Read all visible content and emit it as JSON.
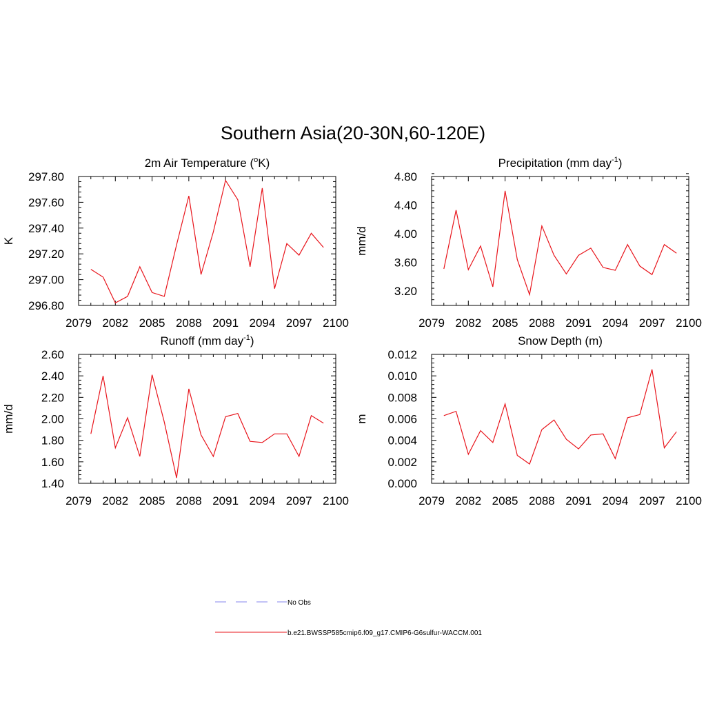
{
  "title": "Southern Asia(20-30N,60-120E)",
  "colors": {
    "series": "#e8141b",
    "no_obs": "#9e9ef0",
    "axis": "#000000"
  },
  "legend": {
    "no_obs_label": "No Obs",
    "model_label": "b.e21.BWSSP585cmip6.f09_g17.CMIP6-G6sulfur-WACCM.001"
  },
  "chart_data": [
    {
      "type": "line",
      "title_main": "2m Air Temperature (",
      "title_sup": "o",
      "title_tail": "K)",
      "ylabel": "K",
      "xlim": [
        2079,
        2100
      ],
      "xticks": [
        "2079",
        "2082",
        "2085",
        "2088",
        "2091",
        "2094",
        "2097",
        "2100"
      ],
      "ylim": [
        296.8,
        297.8
      ],
      "yticks": [
        "296.80",
        "297.00",
        "297.20",
        "297.40",
        "297.60",
        "297.80"
      ],
      "series": [
        {
          "x": [
            2080,
            2081,
            2082,
            2083,
            2084,
            2085,
            2086,
            2087,
            2088,
            2089,
            2090,
            2091,
            2092,
            2093,
            2094,
            2095,
            2096,
            2097,
            2098,
            2099
          ],
          "values": [
            297.08,
            297.02,
            296.82,
            296.87,
            297.1,
            296.9,
            296.87,
            297.27,
            297.65,
            297.04,
            297.37,
            297.77,
            297.62,
            297.1,
            297.71,
            296.93,
            297.28,
            297.19,
            297.36,
            297.25
          ]
        }
      ]
    },
    {
      "type": "line",
      "title_main": "Precipitation (mm day",
      "title_sup": "-1",
      "title_tail": ")",
      "ylabel": "mm/d",
      "xlim": [
        2079,
        2100
      ],
      "xticks": [
        "2079",
        "2082",
        "2085",
        "2088",
        "2091",
        "2094",
        "2097",
        "2100"
      ],
      "ylim": [
        3.0,
        4.8
      ],
      "yticks": [
        "3.20",
        "3.60",
        "4.00",
        "4.40",
        "4.80"
      ],
      "series": [
        {
          "x": [
            2080,
            2081,
            2082,
            2083,
            2084,
            2085,
            2086,
            2087,
            2088,
            2089,
            2090,
            2091,
            2092,
            2093,
            2094,
            2095,
            2096,
            2097,
            2098,
            2099
          ],
          "values": [
            3.51,
            4.33,
            3.5,
            3.83,
            3.26,
            4.6,
            3.64,
            3.15,
            4.11,
            3.7,
            3.44,
            3.7,
            3.8,
            3.53,
            3.49,
            3.85,
            3.55,
            3.43,
            3.85,
            3.73
          ]
        }
      ]
    },
    {
      "type": "line",
      "title_main": "Runoff (mm day",
      "title_sup": "-1",
      "title_tail": ")",
      "ylabel": "mm/d",
      "xlim": [
        2079,
        2100
      ],
      "xticks": [
        "2079",
        "2082",
        "2085",
        "2088",
        "2091",
        "2094",
        "2097",
        "2100"
      ],
      "ylim": [
        1.4,
        2.6
      ],
      "yticks": [
        "1.40",
        "1.60",
        "1.80",
        "2.00",
        "2.20",
        "2.40",
        "2.60"
      ],
      "series": [
        {
          "x": [
            2080,
            2081,
            2082,
            2083,
            2084,
            2085,
            2086,
            2087,
            2088,
            2089,
            2090,
            2091,
            2092,
            2093,
            2094,
            2095,
            2096,
            2097,
            2098,
            2099
          ],
          "values": [
            1.86,
            2.4,
            1.73,
            2.01,
            1.65,
            2.41,
            1.97,
            1.45,
            2.28,
            1.85,
            1.65,
            2.02,
            2.05,
            1.79,
            1.78,
            1.86,
            1.86,
            1.65,
            2.03,
            1.96
          ]
        }
      ]
    },
    {
      "type": "line",
      "title_main": "Snow Depth (m)",
      "title_sup": "",
      "title_tail": "",
      "ylabel": "m",
      "xlim": [
        2079,
        2100
      ],
      "xticks": [
        "2079",
        "2082",
        "2085",
        "2088",
        "2091",
        "2094",
        "2097",
        "2100"
      ],
      "ylim": [
        0.0,
        0.012
      ],
      "yticks": [
        "0.000",
        "0.002",
        "0.004",
        "0.006",
        "0.008",
        "0.010",
        "0.012"
      ],
      "series": [
        {
          "x": [
            2080,
            2081,
            2082,
            2083,
            2084,
            2085,
            2086,
            2087,
            2088,
            2089,
            2090,
            2091,
            2092,
            2093,
            2094,
            2095,
            2096,
            2097,
            2098,
            2099
          ],
          "values": [
            0.0063,
            0.0067,
            0.0027,
            0.0049,
            0.0038,
            0.0074,
            0.0026,
            0.0018,
            0.005,
            0.0059,
            0.0041,
            0.0032,
            0.0045,
            0.0046,
            0.0023,
            0.0061,
            0.0064,
            0.0106,
            0.0033,
            0.0048
          ]
        }
      ]
    }
  ]
}
